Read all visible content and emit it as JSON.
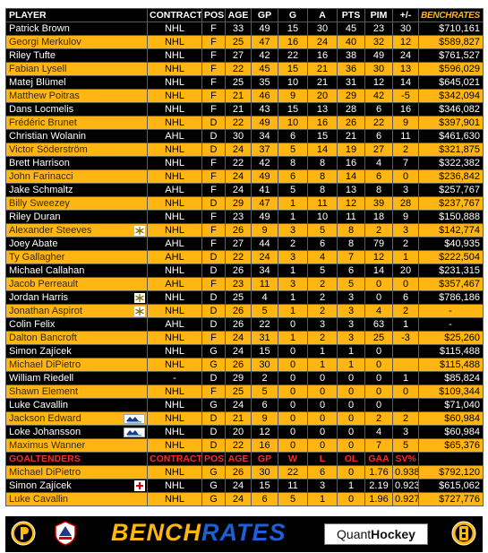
{
  "headers": {
    "player": "PLAYER",
    "contract": "CONTRACT",
    "pos": "POS",
    "age": "AGE",
    "gp": "GP",
    "g": "G",
    "a": "A",
    "pts": "PTS",
    "pim": "PIM",
    "pm": "+/-",
    "brand": "BENCHRATES"
  },
  "skaters": [
    {
      "name": "Patrick Brown",
      "contract": "NHL",
      "pos": "F",
      "age": "33",
      "gp": "49",
      "g": "15",
      "a": "30",
      "pts": "45",
      "pim": "23",
      "pm": "30",
      "salary": "$710,161"
    },
    {
      "name": "Georgi Merkulov",
      "contract": "NHL",
      "pos": "F",
      "age": "25",
      "gp": "47",
      "g": "16",
      "a": "24",
      "pts": "40",
      "pim": "32",
      "pm": "12",
      "salary": "$589,827"
    },
    {
      "name": "Riley Tufte",
      "contract": "NHL",
      "pos": "F",
      "age": "27",
      "gp": "42",
      "g": "22",
      "a": "16",
      "pts": "38",
      "pim": "49",
      "pm": "24",
      "salary": "$761,527"
    },
    {
      "name": "Fabian Lysell",
      "contract": "NHL",
      "pos": "F",
      "age": "22",
      "gp": "45",
      "g": "15",
      "a": "21",
      "pts": "36",
      "pim": "30",
      "pm": "13",
      "salary": "$596,029"
    },
    {
      "name": "Matej Blümel",
      "contract": "NHL",
      "pos": "F",
      "age": "25",
      "gp": "35",
      "g": "10",
      "a": "21",
      "pts": "31",
      "pim": "12",
      "pm": "14",
      "salary": "$645,021"
    },
    {
      "name": "Matthew Poitras",
      "contract": "NHL",
      "pos": "F",
      "age": "21",
      "gp": "46",
      "g": "9",
      "a": "20",
      "pts": "29",
      "pim": "42",
      "pm": "-5",
      "salary": "$342,094"
    },
    {
      "name": "Dans Locmelis",
      "contract": "NHL",
      "pos": "F",
      "age": "21",
      "gp": "43",
      "g": "15",
      "a": "13",
      "pts": "28",
      "pim": "6",
      "pm": "16",
      "salary": "$346,082"
    },
    {
      "name": "Frédéric Brunet",
      "contract": "NHL",
      "pos": "D",
      "age": "22",
      "gp": "49",
      "g": "10",
      "a": "16",
      "pts": "26",
      "pim": "22",
      "pm": "9",
      "salary": "$397,901"
    },
    {
      "name": "Christian Wolanin",
      "contract": "AHL",
      "pos": "D",
      "age": "30",
      "gp": "34",
      "g": "6",
      "a": "15",
      "pts": "21",
      "pim": "6",
      "pm": "11",
      "salary": "$461,630"
    },
    {
      "name": "Victor Söderström",
      "contract": "NHL",
      "pos": "D",
      "age": "24",
      "gp": "37",
      "g": "5",
      "a": "14",
      "pts": "19",
      "pim": "27",
      "pm": "2",
      "salary": "$321,875"
    },
    {
      "name": "Brett Harrison",
      "contract": "NHL",
      "pos": "F",
      "age": "22",
      "gp": "42",
      "g": "8",
      "a": "8",
      "pts": "16",
      "pim": "4",
      "pm": "7",
      "salary": "$322,382"
    },
    {
      "name": "John Farinacci",
      "contract": "NHL",
      "pos": "F",
      "age": "24",
      "gp": "49",
      "g": "6",
      "a": "8",
      "pts": "14",
      "pim": "6",
      "pm": "0",
      "salary": "$236,842"
    },
    {
      "name": "Jake Schmaltz",
      "contract": "AHL",
      "pos": "F",
      "age": "24",
      "gp": "41",
      "g": "5",
      "a": "8",
      "pts": "13",
      "pim": "8",
      "pm": "3",
      "salary": "$257,767"
    },
    {
      "name": "Billy Sweezey",
      "contract": "NHL",
      "pos": "D",
      "age": "29",
      "gp": "47",
      "g": "1",
      "a": "11",
      "pts": "12",
      "pim": "39",
      "pm": "28",
      "salary": "$237,767"
    },
    {
      "name": "Riley Duran",
      "contract": "NHL",
      "pos": "F",
      "age": "23",
      "gp": "49",
      "g": "1",
      "a": "10",
      "pts": "11",
      "pim": "18",
      "pm": "9",
      "salary": "$150,888"
    },
    {
      "name": "Alexander Steeves",
      "contract": "NHL",
      "pos": "F",
      "age": "26",
      "gp": "9",
      "g": "3",
      "a": "5",
      "pts": "8",
      "pim": "2",
      "pm": "3",
      "salary": "$142,774",
      "badge": "snowflake"
    },
    {
      "name": "Joey Abate",
      "contract": "AHL",
      "pos": "F",
      "age": "27",
      "gp": "44",
      "g": "2",
      "a": "6",
      "pts": "8",
      "pim": "79",
      "pm": "2",
      "salary": "$40,935"
    },
    {
      "name": "Ty Gallagher",
      "contract": "AHL",
      "pos": "D",
      "age": "22",
      "gp": "24",
      "g": "3",
      "a": "4",
      "pts": "7",
      "pim": "12",
      "pm": "1",
      "salary": "$222,504"
    },
    {
      "name": "Michael Callahan",
      "contract": "NHL",
      "pos": "D",
      "age": "26",
      "gp": "34",
      "g": "1",
      "a": "5",
      "pts": "6",
      "pim": "14",
      "pm": "20",
      "salary": "$231,315"
    },
    {
      "name": "Jacob Perreault",
      "contract": "AHL",
      "pos": "F",
      "age": "23",
      "gp": "11",
      "g": "3",
      "a": "2",
      "pts": "5",
      "pim": "0",
      "pm": "0",
      "salary": "$357,467"
    },
    {
      "name": "Jordan Harris",
      "contract": "NHL",
      "pos": "D",
      "age": "25",
      "gp": "4",
      "g": "1",
      "a": "2",
      "pts": "3",
      "pim": "0",
      "pm": "6",
      "salary": "$786,186",
      "badge": "snowflake"
    },
    {
      "name": "Jonathan Aspirot",
      "contract": "NHL",
      "pos": "D",
      "age": "26",
      "gp": "5",
      "g": "1",
      "a": "2",
      "pts": "3",
      "pim": "4",
      "pm": "2",
      "salary": "-",
      "badge": "snowflake"
    },
    {
      "name": "Colin Felix",
      "contract": "AHL",
      "pos": "D",
      "age": "26",
      "gp": "22",
      "g": "0",
      "a": "3",
      "pts": "3",
      "pim": "63",
      "pm": "1",
      "salary": "-"
    },
    {
      "name": "Dalton Bancroft",
      "contract": "NHL",
      "pos": "F",
      "age": "24",
      "gp": "31",
      "g": "1",
      "a": "2",
      "pts": "3",
      "pim": "25",
      "pm": "-3",
      "salary": "$25,260"
    },
    {
      "name": "Simon Zajícek",
      "contract": "NHL",
      "pos": "G",
      "age": "24",
      "gp": "15",
      "g": "0",
      "a": "1",
      "pts": "1",
      "pim": "0",
      "pm": "",
      "salary": "$115,488"
    },
    {
      "name": "Michael DiPietro",
      "contract": "NHL",
      "pos": "G",
      "age": "26",
      "gp": "30",
      "g": "0",
      "a": "1",
      "pts": "1",
      "pim": "0",
      "pm": "",
      "salary": "$115,488"
    },
    {
      "name": "William Riedell",
      "contract": "-",
      "pos": "D",
      "age": "29",
      "gp": "2",
      "g": "0",
      "a": "0",
      "pts": "0",
      "pim": "0",
      "pm": "1",
      "salary": "$85,824"
    },
    {
      "name": "Shawn Element",
      "contract": "NHL",
      "pos": "F",
      "age": "25",
      "gp": "5",
      "g": "0",
      "a": "0",
      "pts": "0",
      "pim": "0",
      "pm": "0",
      "salary": "$109,344"
    },
    {
      "name": "Luke Cavallin",
      "contract": "NHL",
      "pos": "G",
      "age": "24",
      "gp": "6",
      "g": "0",
      "a": "0",
      "pts": "0",
      "pim": "0",
      "pm": "",
      "salary": "$71,040"
    },
    {
      "name": "Jackson Edward",
      "contract": "NHL",
      "pos": "D",
      "age": "21",
      "gp": "9",
      "g": "0",
      "a": "0",
      "pts": "0",
      "pim": "2",
      "pm": "2",
      "salary": "$60,984",
      "badge": "mariners"
    },
    {
      "name": "Loke Johansson",
      "contract": "NHL",
      "pos": "D",
      "age": "20",
      "gp": "12",
      "g": "0",
      "a": "0",
      "pts": "0",
      "pim": "4",
      "pm": "3",
      "salary": "$60,984",
      "badge": "mariners"
    },
    {
      "name": "Maximus Wanner",
      "contract": "NHL",
      "pos": "D",
      "age": "22",
      "gp": "16",
      "g": "0",
      "a": "0",
      "pts": "0",
      "pim": "7",
      "pm": "5",
      "salary": "$65,376"
    }
  ],
  "goalie_headers": {
    "section": "GOALTENDERS",
    "contract": "CONTRACT",
    "pos": "POS",
    "age": "AGE",
    "gp": "GP",
    "w": "W",
    "l": "L",
    "ol": "OL",
    "gaa": "GAA",
    "svp": "SV%"
  },
  "goalies": [
    {
      "name": "Michael DiPietro",
      "contract": "NHL",
      "pos": "G",
      "age": "26",
      "gp": "30",
      "w": "22",
      "l": "6",
      "ol": "0",
      "gaa": "1.76",
      "svp": "0.938",
      "salary": "$792,120"
    },
    {
      "name": "Simon Zajícek",
      "contract": "NHL",
      "pos": "G",
      "age": "24",
      "gp": "15",
      "w": "11",
      "l": "3",
      "ol": "1",
      "gaa": "2.19",
      "svp": "0.923",
      "salary": "$615,062",
      "badge": "cross"
    },
    {
      "name": "Luke Cavallin",
      "contract": "NHL",
      "pos": "G",
      "age": "24",
      "gp": "6",
      "w": "5",
      "l": "1",
      "ol": "0",
      "gaa": "1.96",
      "svp": "0.927",
      "salary": "$727,776"
    }
  ],
  "footer": {
    "brand_bench": "BENCH",
    "brand_rates": "RATES",
    "quant": "Quant",
    "hockey": "Hockey"
  },
  "colors": {
    "gold": "#ffb612",
    "black": "#000000",
    "brand_blue": "#1d5fd6",
    "section_red": "#ff2a2a"
  }
}
